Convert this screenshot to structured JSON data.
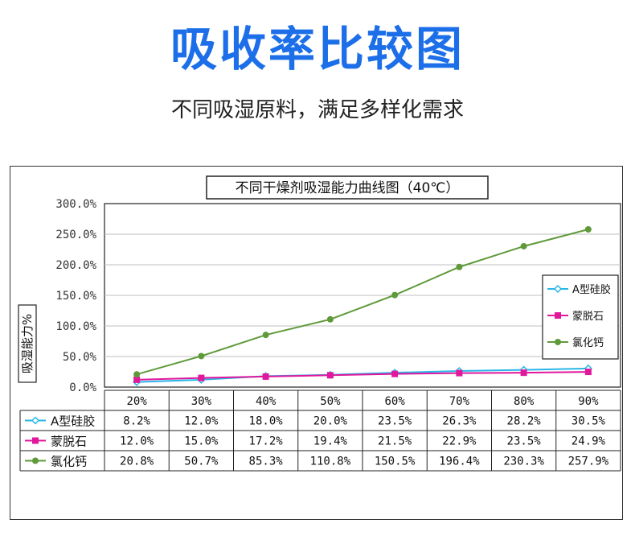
{
  "header": {
    "title": "吸收率比较图",
    "subtitle": "不同吸湿原料，满足多样化需求"
  },
  "chart_data": {
    "type": "line",
    "title": "不同干燥剂吸湿能力曲线图（40℃）",
    "ylabel": "吸湿能力%",
    "xlabel": "",
    "ylim": [
      0,
      300
    ],
    "yticks": [
      "0.0%",
      "50.0%",
      "100.0%",
      "150.0%",
      "200.0%",
      "250.0%",
      "300.0%"
    ],
    "grid": true,
    "legend_position": "right",
    "categories": [
      "20%",
      "30%",
      "40%",
      "50%",
      "60%",
      "70%",
      "80%",
      "90%"
    ],
    "series": [
      {
        "name": "A型硅胶",
        "color": "#29b6e8",
        "marker": "diamond",
        "values": [
          8.2,
          12.0,
          18.0,
          20.0,
          23.5,
          26.3,
          28.2,
          30.5
        ],
        "labels": [
          "8.2%",
          "12.0%",
          "18.0%",
          "20.0%",
          "23.5%",
          "26.3%",
          "28.2%",
          "30.5%"
        ]
      },
      {
        "name": "蒙脱石",
        "color": "#e0189c",
        "marker": "square",
        "values": [
          12.0,
          15.0,
          17.2,
          19.4,
          21.5,
          22.9,
          23.5,
          24.9
        ],
        "labels": [
          "12.0%",
          "15.0%",
          "17.2%",
          "19.4%",
          "21.5%",
          "22.9%",
          "23.5%",
          "24.9%"
        ]
      },
      {
        "name": "氯化钙",
        "color": "#5f9a3a",
        "marker": "circle",
        "values": [
          20.8,
          50.7,
          85.3,
          110.8,
          150.5,
          196.4,
          230.3,
          257.9
        ],
        "labels": [
          "20.8%",
          "50.7%",
          "85.3%",
          "110.8%",
          "150.5%",
          "196.4%",
          "230.3%",
          "257.9%"
        ]
      }
    ]
  }
}
